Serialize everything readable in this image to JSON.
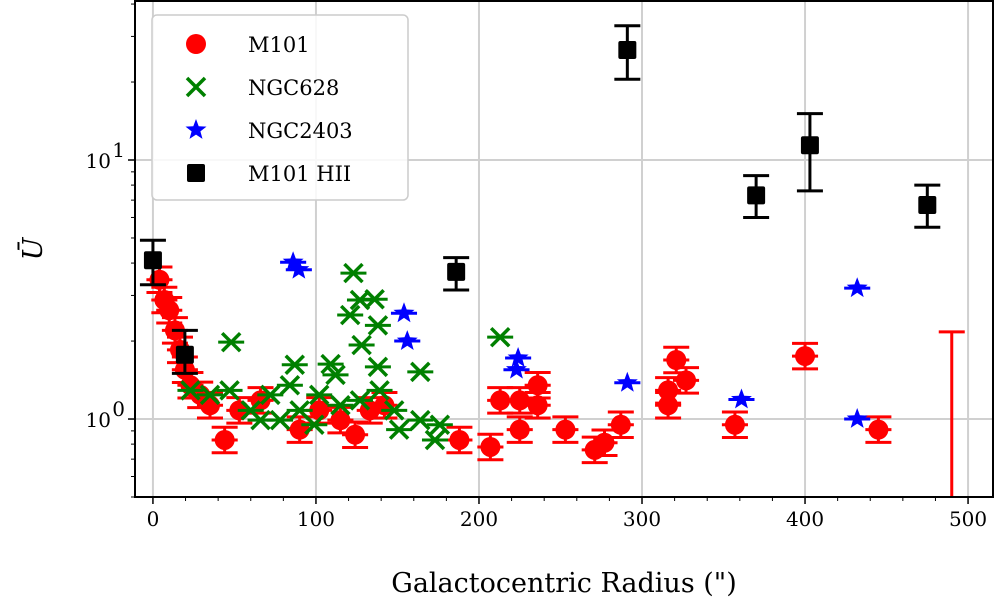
{
  "chart_data": {
    "type": "scatter",
    "title": "",
    "xlabel": "Galactocentric Radius (\")",
    "ylabel": "Ū",
    "xlim": [
      -11,
      515.3
    ],
    "ylim": [
      0.5,
      41.1
    ],
    "yscale": "log",
    "grid": true,
    "legend_position": "top-left",
    "xticks": [
      0,
      100,
      200,
      300,
      400,
      500
    ],
    "xtick_labels": [
      "0",
      "100",
      "200",
      "300",
      "400",
      "500"
    ],
    "yticks": [
      1,
      10
    ],
    "ytick_labels": [
      {
        "base": "10",
        "exp": "0"
      },
      {
        "base": "10",
        "exp": "1"
      }
    ],
    "series": [
      {
        "name": "M101",
        "marker": "circle",
        "color": "#ff0000",
        "xerr": 8,
        "yerr_frac": 0.12,
        "points": [
          [
            4,
            3.45
          ],
          [
            7,
            2.88
          ],
          [
            10,
            2.63
          ],
          [
            13.5,
            2.2
          ],
          [
            16.6,
            1.85
          ],
          [
            19.6,
            1.55
          ],
          [
            23,
            1.35
          ],
          [
            29,
            1.24
          ],
          [
            35,
            1.13
          ],
          [
            44,
            0.83
          ],
          [
            53,
            1.08
          ],
          [
            66,
            1.18
          ],
          [
            90,
            0.91
          ],
          [
            102,
            1.08
          ],
          [
            115,
            0.99
          ],
          [
            124,
            0.87
          ],
          [
            133,
            1.08
          ],
          [
            142,
            1.13
          ],
          [
            188,
            0.83
          ],
          [
            207,
            0.78
          ],
          [
            213,
            1.18
          ],
          [
            225,
            1.18
          ],
          [
            225,
            0.91
          ],
          [
            236,
            1.35
          ],
          [
            236,
            1.13
          ],
          [
            253,
            0.91
          ],
          [
            271,
            0.76
          ],
          [
            277,
            0.81
          ],
          [
            287,
            0.95
          ],
          [
            316,
            1.29
          ],
          [
            316,
            1.13
          ],
          [
            321,
            1.69
          ],
          [
            327,
            1.41
          ],
          [
            357,
            0.95
          ],
          [
            400,
            1.75
          ],
          [
            445,
            0.91
          ]
        ],
        "upper_only": [
          [
            490,
            0.3,
            2.17
          ]
        ]
      },
      {
        "name": "NGC628",
        "marker": "x",
        "color": "#008000",
        "points": [
          [
            48,
            1.98
          ],
          [
            123,
            3.66
          ],
          [
            127,
            2.88
          ],
          [
            136,
            2.9
          ],
          [
            121,
            2.52
          ],
          [
            138,
            2.3
          ],
          [
            128,
            1.93
          ],
          [
            138,
            1.59
          ],
          [
            213,
            2.07
          ],
          [
            164,
            1.52
          ],
          [
            87,
            1.62
          ],
          [
            109,
            1.63
          ],
          [
            112,
            1.48
          ],
          [
            23,
            1.29
          ],
          [
            35,
            1.24
          ],
          [
            47,
            1.29
          ],
          [
            60,
            1.08
          ],
          [
            72,
            1.24
          ],
          [
            84,
            1.35
          ],
          [
            90,
            1.08
          ],
          [
            102,
            1.24
          ],
          [
            115,
            1.13
          ],
          [
            127,
            1.18
          ],
          [
            139,
            1.29
          ],
          [
            148,
            1.08
          ],
          [
            151,
            0.91
          ],
          [
            164,
            0.99
          ],
          [
            173,
            0.83
          ],
          [
            176,
            0.95
          ],
          [
            78,
            0.99
          ],
          [
            99,
            0.95
          ],
          [
            66,
            0.99
          ]
        ]
      },
      {
        "name": "NGC2403",
        "marker": "star",
        "color": "#0000ff",
        "xerr": 8,
        "points": [
          [
            86,
            4.03
          ],
          [
            89.5,
            3.77
          ],
          [
            154,
            2.56
          ],
          [
            156,
            2.0
          ],
          [
            224,
            1.72
          ],
          [
            223,
            1.55
          ],
          [
            291,
            1.38
          ],
          [
            361,
            1.19
          ],
          [
            432,
            3.2
          ],
          [
            432,
            1.0
          ]
        ]
      },
      {
        "name": "M101 HII",
        "marker": "square",
        "color": "#000000",
        "points": [
          [
            0,
            4.1,
            3.3,
            4.9
          ],
          [
            19.6,
            1.77,
            1.5,
            2.2
          ],
          [
            186,
            3.7,
            3.15,
            4.2
          ],
          [
            291,
            26.6,
            20.5,
            33
          ],
          [
            370,
            7.3,
            6.0,
            8.7
          ],
          [
            403,
            11.4,
            7.6,
            15.1
          ],
          [
            475,
            6.7,
            5.5,
            8.0
          ]
        ]
      }
    ]
  }
}
